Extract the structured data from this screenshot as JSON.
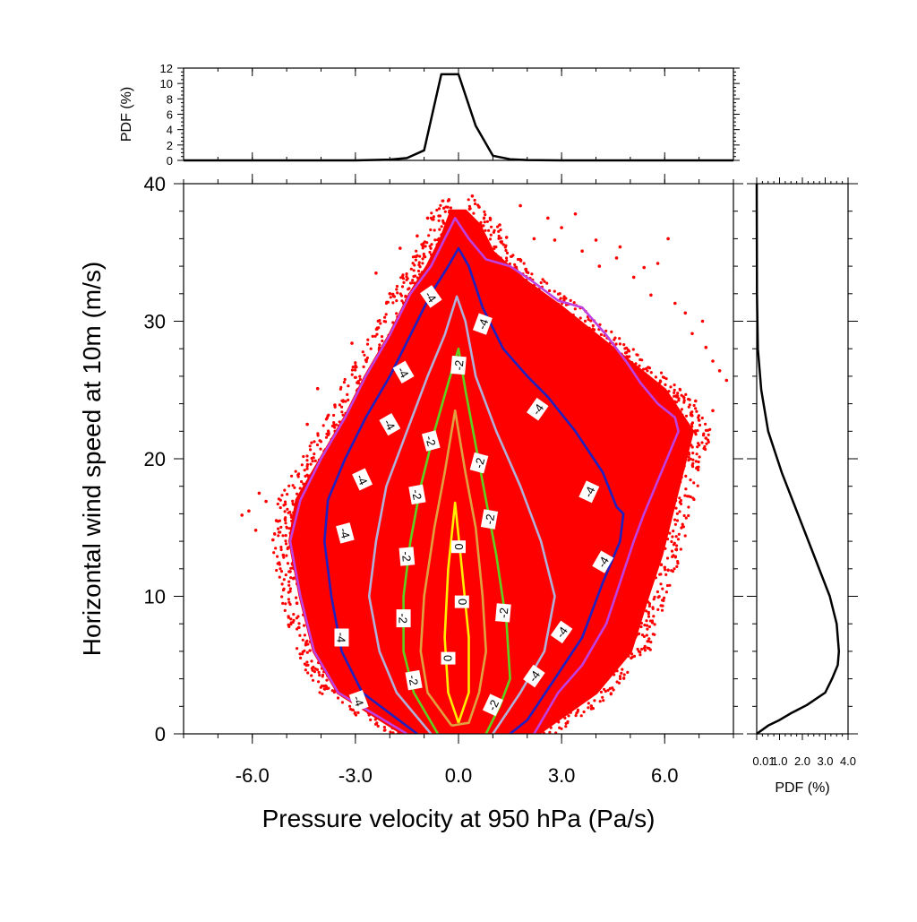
{
  "chart_data": [
    {
      "id": "main",
      "type": "scatter",
      "xlabel": "Pressure velocity at 950 hPa (Pa/s)",
      "ylabel": "Horizontal wind speed at 10m (m/s)",
      "xlim": [
        -8,
        8
      ],
      "ylim": [
        0,
        40
      ],
      "xticks": [
        -6,
        -3,
        0,
        3,
        6
      ],
      "xtick_labels": [
        "-6.0",
        "-3.0",
        "0.0",
        "3.0",
        "6.0"
      ],
      "yticks": [
        0,
        10,
        20,
        30,
        40
      ],
      "ytick_labels": [
        "0",
        "10",
        "20",
        "30",
        "40"
      ],
      "scatter_color": "#ff0000",
      "scatter_envelope": {
        "left": [
          [
            0,
            -1.6
          ],
          [
            3,
            -3.5
          ],
          [
            6,
            -4.2
          ],
          [
            10,
            -4.6
          ],
          [
            14,
            -4.9
          ],
          [
            17,
            -4.7
          ],
          [
            20,
            -4.0
          ],
          [
            23,
            -3.3
          ],
          [
            26,
            -2.7
          ],
          [
            29,
            -2.0
          ],
          [
            32,
            -1.4
          ],
          [
            34,
            -0.9
          ],
          [
            36,
            -0.5
          ],
          [
            38,
            -0.2
          ]
        ],
        "right": [
          [
            0,
            2.3
          ],
          [
            3,
            4.0
          ],
          [
            6,
            5.0
          ],
          [
            10,
            5.5
          ],
          [
            13,
            5.9
          ],
          [
            16,
            6.2
          ],
          [
            19,
            6.5
          ],
          [
            22,
            6.8
          ],
          [
            25,
            6.0
          ],
          [
            28,
            4.5
          ],
          [
            31,
            3.0
          ],
          [
            33,
            1.9
          ],
          [
            35,
            1.0
          ],
          [
            37,
            0.6
          ],
          [
            38,
            0.2
          ]
        ]
      },
      "outliers": [
        [
          -5.8,
          17.5
        ],
        [
          -5.6,
          16.9
        ],
        [
          -6.1,
          16.2
        ],
        [
          -5.3,
          15.5
        ],
        [
          -5.9,
          14.8
        ],
        [
          -5.4,
          14.1
        ],
        [
          -5.1,
          13.0
        ],
        [
          -4.9,
          11.8
        ],
        [
          -6.3,
          15.9
        ],
        [
          -4.6,
          12.6
        ],
        [
          -4.4,
          8.3
        ],
        [
          -4.7,
          9.5
        ],
        [
          -4.4,
          22.5
        ],
        [
          -4.1,
          25.1
        ],
        [
          -3.6,
          23.9
        ],
        [
          -3.1,
          28.4
        ],
        [
          -2.4,
          33.5
        ],
        [
          -2.0,
          32.0
        ],
        [
          -1.7,
          35.3
        ],
        [
          -1.2,
          36.2
        ],
        [
          -0.9,
          37.5
        ],
        [
          0.4,
          39.1
        ],
        [
          0.6,
          38.3
        ],
        [
          1.4,
          36.1
        ],
        [
          2.2,
          36.0
        ],
        [
          2.8,
          35.9
        ],
        [
          3.6,
          35.1
        ],
        [
          4.1,
          34.0
        ],
        [
          4.6,
          34.6
        ],
        [
          5.1,
          33.2
        ],
        [
          5.6,
          31.9
        ],
        [
          6.3,
          31.3
        ],
        [
          6.6,
          30.6
        ],
        [
          7.1,
          30.0
        ],
        [
          7.4,
          27.1
        ],
        [
          7.6,
          26.4
        ],
        [
          7.8,
          25.7
        ],
        [
          7.4,
          23.5
        ],
        [
          7.0,
          22.8
        ],
        [
          6.9,
          24.2
        ],
        [
          7.2,
          21.5
        ],
        [
          6.6,
          20.3
        ],
        [
          6.2,
          19.0
        ],
        [
          5.9,
          12.3
        ],
        [
          6.1,
          11.9
        ],
        [
          6.0,
          12.1
        ],
        [
          3.4,
          37.8
        ],
        [
          4.7,
          35.4
        ],
        [
          5.8,
          34.2
        ],
        [
          2.6,
          37.5
        ],
        [
          1.8,
          38.4
        ],
        [
          1.2,
          37.0
        ],
        [
          4.0,
          35.9
        ],
        [
          3.0,
          36.8
        ],
        [
          5.4,
          33.9
        ],
        [
          6.8,
          29.1
        ],
        [
          7.2,
          28.1
        ],
        [
          6.1,
          36.0
        ]
      ],
      "contours": [
        {
          "label": "-4",
          "color": "#c040e0",
          "points": [
            [
              -1.5,
              0
            ],
            [
              -3.5,
              3
            ],
            [
              -4.2,
              6
            ],
            [
              -4.6,
              10
            ],
            [
              -4.9,
              14
            ],
            [
              -4.6,
              17
            ],
            [
              -4.0,
              20
            ],
            [
              -3.3,
              23
            ],
            [
              -2.7,
              26
            ],
            [
              -2.0,
              29
            ],
            [
              -1.4,
              32
            ],
            [
              -0.8,
              34
            ],
            [
              -0.4,
              36
            ],
            [
              -0.1,
              37.5
            ],
            [
              0.3,
              36
            ],
            [
              0.8,
              34.5
            ],
            [
              1.5,
              34
            ],
            [
              2.1,
              33
            ],
            [
              2.9,
              31.5
            ],
            [
              3.6,
              31
            ],
            [
              4.3,
              29
            ],
            [
              4.9,
              27
            ],
            [
              5.3,
              25.5
            ],
            [
              5.8,
              24
            ],
            [
              6.3,
              23
            ],
            [
              6.4,
              22
            ],
            [
              5.9,
              19
            ],
            [
              5.4,
              16
            ],
            [
              5.1,
              14
            ],
            [
              4.7,
              11
            ],
            [
              4.3,
              8
            ],
            [
              3.6,
              5
            ],
            [
              2.9,
              3
            ],
            [
              2.2,
              0
            ]
          ]
        },
        {
          "label": "-4",
          "color": "#2020c0",
          "points": [
            [
              -1.2,
              0
            ],
            [
              -2.8,
              3
            ],
            [
              -3.4,
              6
            ],
            [
              -3.7,
              10
            ],
            [
              -3.9,
              14
            ],
            [
              -3.8,
              17
            ],
            [
              -3.3,
              20
            ],
            [
              -2.7,
              23
            ],
            [
              -2.0,
              26
            ],
            [
              -1.4,
              29
            ],
            [
              -0.8,
              32
            ],
            [
              -0.3,
              34
            ],
            [
              0.0,
              35.3
            ],
            [
              0.3,
              34
            ],
            [
              0.7,
              31
            ],
            [
              1.3,
              28
            ],
            [
              2.0,
              26
            ],
            [
              2.6,
              24.5
            ],
            [
              3.4,
              22
            ],
            [
              4.2,
              19
            ],
            [
              4.6,
              16.5
            ],
            [
              4.8,
              16
            ],
            [
              4.7,
              14
            ],
            [
              4.2,
              11
            ],
            [
              3.6,
              7
            ],
            [
              2.8,
              4
            ],
            [
              2.0,
              1
            ],
            [
              1.5,
              0
            ]
          ]
        },
        {
          "label": "-4",
          "color": "#b0b0d8",
          "points": [
            [
              -0.8,
              0
            ],
            [
              -1.8,
              3
            ],
            [
              -2.3,
              6
            ],
            [
              -2.6,
              10
            ],
            [
              -2.4,
              14
            ],
            [
              -2.1,
              18
            ],
            [
              -1.5,
              22
            ],
            [
              -0.9,
              26
            ],
            [
              -0.4,
              29
            ],
            [
              -0.05,
              31.8
            ],
            [
              0.2,
              30
            ],
            [
              0.5,
              26
            ],
            [
              1.1,
              22
            ],
            [
              1.8,
              18
            ],
            [
              2.4,
              14
            ],
            [
              2.8,
              10
            ],
            [
              2.5,
              6
            ],
            [
              1.8,
              3
            ],
            [
              1.0,
              0
            ]
          ]
        },
        {
          "label": "-2",
          "color": "#60d020",
          "points": [
            [
              -0.6,
              0
            ],
            [
              -1.3,
              3
            ],
            [
              -1.6,
              6
            ],
            [
              -1.6,
              10
            ],
            [
              -1.4,
              14
            ],
            [
              -1.1,
              18
            ],
            [
              -0.7,
              22
            ],
            [
              -0.3,
              25.5
            ],
            [
              0.0,
              28
            ],
            [
              0.2,
              25
            ],
            [
              0.5,
              21
            ],
            [
              0.8,
              17
            ],
            [
              1.1,
              13
            ],
            [
              1.4,
              8
            ],
            [
              1.5,
              4
            ],
            [
              1.2,
              2
            ],
            [
              0.8,
              0
            ]
          ]
        },
        {
          "label": "-2",
          "color": "#e0a040",
          "points": [
            [
              -0.2,
              0.6
            ],
            [
              -0.9,
              3
            ],
            [
              -1.1,
              6
            ],
            [
              -1.0,
              10
            ],
            [
              -0.7,
              15
            ],
            [
              -0.4,
              19
            ],
            [
              -0.1,
              23.5
            ],
            [
              0.2,
              19
            ],
            [
              0.5,
              15
            ],
            [
              0.7,
              10
            ],
            [
              0.8,
              6
            ],
            [
              0.6,
              3
            ],
            [
              0.3,
              0.8
            ],
            [
              -0.2,
              0.6
            ]
          ]
        },
        {
          "label": "0",
          "color": "#ffee00",
          "points": [
            [
              0.0,
              0.8
            ],
            [
              -0.3,
              3
            ],
            [
              -0.4,
              7
            ],
            [
              -0.3,
              12
            ],
            [
              -0.1,
              16.8
            ],
            [
              0.1,
              12
            ],
            [
              0.3,
              7
            ],
            [
              0.3,
              3
            ],
            [
              0.0,
              0.8
            ]
          ]
        }
      ],
      "contour_labels": [
        {
          "text": "-4",
          "at": [
            -0.8,
            31.8
          ],
          "angle": 55
        },
        {
          "text": "-4",
          "at": [
            -1.6,
            26.3
          ],
          "angle": 60
        },
        {
          "text": "-4",
          "at": [
            -2.0,
            22.5
          ],
          "angle": 60
        },
        {
          "text": "-4",
          "at": [
            -2.8,
            18.5
          ],
          "angle": 65
        },
        {
          "text": "-4",
          "at": [
            -3.3,
            14.6
          ],
          "angle": 75
        },
        {
          "text": "-4",
          "at": [
            -3.4,
            7.0
          ],
          "angle": 90
        },
        {
          "text": "-4",
          "at": [
            -2.9,
            2.4
          ],
          "angle": 70
        },
        {
          "text": "-4",
          "at": [
            0.7,
            29.8
          ],
          "angle": -70
        },
        {
          "text": "-4",
          "at": [
            2.3,
            23.6
          ],
          "angle": -55
        },
        {
          "text": "-4",
          "at": [
            3.8,
            17.6
          ],
          "angle": -65
        },
        {
          "text": "-4",
          "at": [
            4.2,
            12.5
          ],
          "angle": -60
        },
        {
          "text": "-4",
          "at": [
            3.0,
            7.4
          ],
          "angle": -55
        },
        {
          "text": "-4",
          "at": [
            2.2,
            4.2
          ],
          "angle": -55
        },
        {
          "text": "-2",
          "at": [
            0.0,
            26.8
          ],
          "angle": -85
        },
        {
          "text": "-2",
          "at": [
            -0.8,
            21.3
          ],
          "angle": 75
        },
        {
          "text": "-2",
          "at": [
            -1.2,
            17.4
          ],
          "angle": 80
        },
        {
          "text": "-2",
          "at": [
            -1.5,
            12.9
          ],
          "angle": 85
        },
        {
          "text": "-2",
          "at": [
            -1.6,
            8.4
          ],
          "angle": 90
        },
        {
          "text": "-2",
          "at": [
            -1.3,
            3.9
          ],
          "angle": 80
        },
        {
          "text": "-2",
          "at": [
            0.6,
            19.7
          ],
          "angle": -75
        },
        {
          "text": "-2",
          "at": [
            0.9,
            15.6
          ],
          "angle": -80
        },
        {
          "text": "-2",
          "at": [
            1.3,
            8.8
          ],
          "angle": -85
        },
        {
          "text": "-2",
          "at": [
            1.0,
            2.1
          ],
          "angle": -65
        },
        {
          "text": "0",
          "at": [
            0.0,
            13.6
          ],
          "angle": -90
        },
        {
          "text": "0",
          "at": [
            0.1,
            9.6
          ],
          "angle": -90
        },
        {
          "text": "0",
          "at": [
            -0.3,
            5.5
          ],
          "angle": 90
        }
      ]
    },
    {
      "id": "top_pdf",
      "type": "line",
      "ylabel": "PDF (%)",
      "xlim": [
        -8,
        8
      ],
      "ylim": [
        0,
        12
      ],
      "yticks": [
        0,
        2,
        4,
        6,
        8,
        10,
        12
      ],
      "ytick_labels": [
        "0",
        "2",
        "4",
        "6",
        "8",
        "10",
        "12"
      ],
      "x": [
        -8,
        -3,
        -2,
        -1.5,
        -1.0,
        -0.5,
        0.0,
        0.5,
        1.0,
        1.5,
        2.0,
        3.0,
        8
      ],
      "y": [
        0,
        0,
        0.1,
        0.3,
        1.3,
        11.2,
        11.2,
        4.5,
        0.6,
        0.15,
        0.05,
        0,
        0
      ]
    },
    {
      "id": "right_pdf",
      "type": "line",
      "xlabel": "PDF (%)",
      "xlim": [
        0.01,
        4.0
      ],
      "xticks": [
        0.01,
        1.0,
        2.0,
        3.0,
        4.0
      ],
      "xtick_labels": [
        "0.01",
        "1.0",
        "2.0",
        "3.0",
        "4.0"
      ],
      "ylim": [
        0,
        40
      ],
      "x": [
        0.0,
        0.5,
        1.0,
        1.5,
        2.2,
        3.0,
        3.3,
        3.55,
        3.6,
        3.5,
        3.2,
        2.5,
        1.8,
        1.1,
        0.5,
        0.2,
        0.05,
        0.01,
        0.0
      ],
      "y": [
        0,
        0.6,
        1.0,
        1.5,
        2.1,
        3.0,
        4.0,
        5.0,
        6.0,
        8.0,
        10.0,
        13.0,
        16.0,
        19.0,
        22.0,
        25.0,
        28.0,
        32.0,
        40.0
      ]
    }
  ]
}
